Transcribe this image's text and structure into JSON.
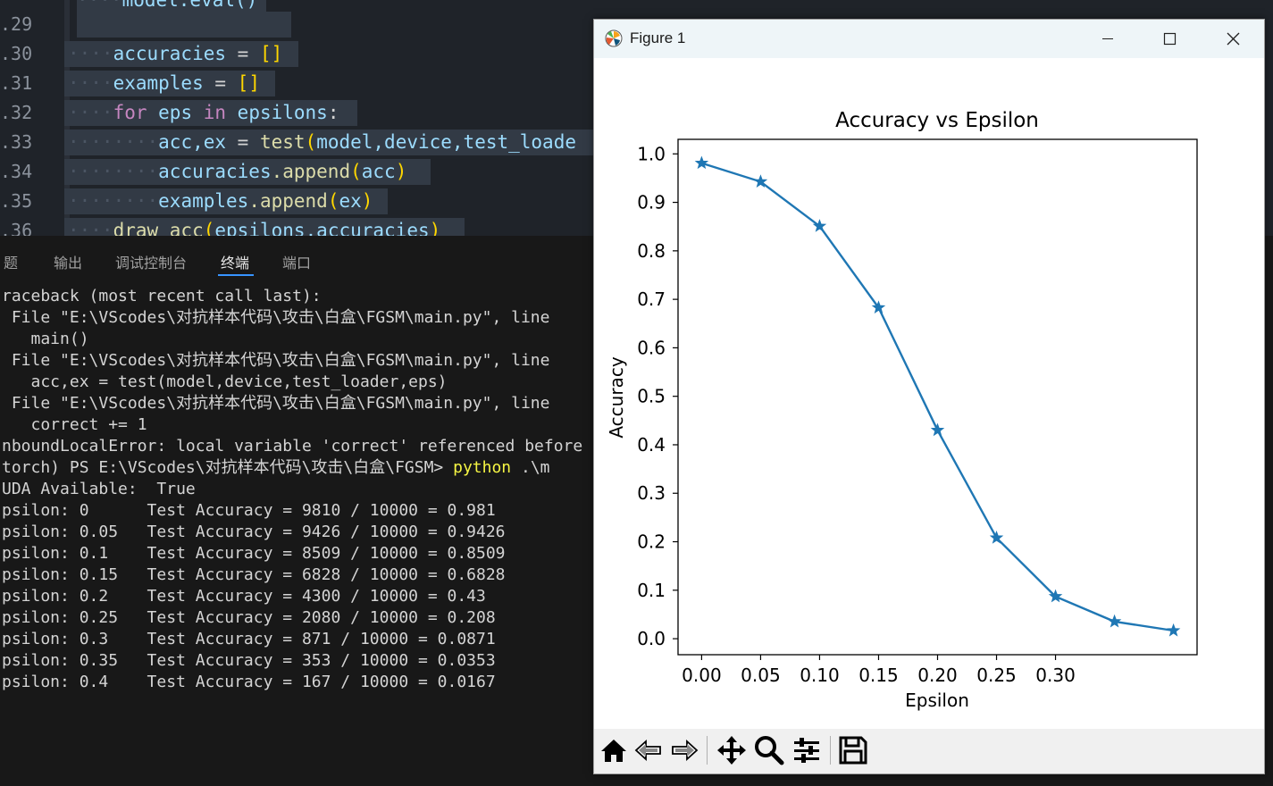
{
  "editor": {
    "lines": [
      {
        "num": ".29"
      },
      {
        "num": ".30"
      },
      {
        "num": ".31"
      },
      {
        "num": ".32"
      },
      {
        "num": ".33"
      },
      {
        "num": ".34"
      },
      {
        "num": ".35"
      },
      {
        "num": ".36"
      }
    ],
    "code": {
      "l28": "model.eval()",
      "l30_var": "accuracies",
      "l30_op": " = ",
      "l30_br": "[]",
      "l31_var": "examples",
      "l31_op": " = ",
      "l31_br": "[]",
      "l32_kw": "for",
      "l32_var1": " eps ",
      "l32_kw2": "in",
      "l32_var2": " epsilons",
      "l32_op": ":",
      "l33_var": "acc,ex",
      "l33_op": " = ",
      "l33_fn": "test",
      "l33_br": "(",
      "l33_args": "model,device,test_loade",
      "l34_var": "accuracies",
      "l34_fn": ".append",
      "l34_br1": "(",
      "l34_arg": "acc",
      "l34_br2": ")",
      "l35_var": "examples",
      "l35_fn": ".append",
      "l35_br1": "(",
      "l35_arg": "ex",
      "l35_br2": ")",
      "l36_fn": "draw_acc",
      "l36_br1": "(",
      "l36_args": "epsilons,accuracies",
      "l36_br2": ")"
    }
  },
  "panel": {
    "tabs": [
      "题",
      "输出",
      "调试控制台",
      "终端",
      "端口"
    ],
    "active_tab": "终端"
  },
  "terminal": {
    "lines": [
      "raceback (most recent call last):",
      " File \"E:\\VScodes\\对抗样本代码\\攻击\\白盒\\FGSM\\main.py\", line",
      "   main()",
      " File \"E:\\VScodes\\对抗样本代码\\攻击\\白盒\\FGSM\\main.py\", line",
      "   acc,ex = test(model,device,test_loader,eps)",
      " File \"E:\\VScodes\\对抗样本代码\\攻击\\白盒\\FGSM\\main.py\", line",
      "   correct += 1",
      "nboundLocalError: local variable 'correct' referenced before"
    ],
    "prompt": "torch) PS E:\\VScodes\\对抗样本代码\\攻击\\白盒\\FGSM> ",
    "command": "python",
    "command_rest": " .\\m",
    "output": [
      "UDA Available:  True",
      "psilon: 0      Test Accuracy = 9810 / 10000 = 0.981",
      "psilon: 0.05   Test Accuracy = 9426 / 10000 = 0.9426",
      "psilon: 0.1    Test Accuracy = 8509 / 10000 = 0.8509",
      "psilon: 0.15   Test Accuracy = 6828 / 10000 = 0.6828",
      "psilon: 0.2    Test Accuracy = 4300 / 10000 = 0.43",
      "psilon: 0.25   Test Accuracy = 2080 / 10000 = 0.208",
      "psilon: 0.3    Test Accuracy = 871 / 10000 = 0.0871",
      "psilon: 0.35   Test Accuracy = 353 / 10000 = 0.0353",
      "psilon: 0.4    Test Accuracy = 167 / 10000 = 0.0167"
    ]
  },
  "figure": {
    "window_title": "Figure 1",
    "toolbar_icons": [
      "home-icon",
      "back-icon",
      "forward-icon",
      "pan-icon",
      "zoom-icon",
      "configure-icon",
      "save-icon"
    ]
  },
  "chart_data": {
    "type": "line",
    "title": "Accuracy vs Epsilon",
    "xlabel": "Epsilon",
    "ylabel": "Accuracy",
    "x": [
      0,
      0.05,
      0.1,
      0.15,
      0.2,
      0.25,
      0.3,
      0.35,
      0.4
    ],
    "y": [
      0.981,
      0.9426,
      0.8509,
      0.6828,
      0.43,
      0.208,
      0.0871,
      0.0353,
      0.0167
    ],
    "xticks": [
      0,
      0.05,
      0.1,
      0.15,
      0.2,
      0.25,
      0.3
    ],
    "xtick_labels": [
      "0.00",
      "0.05",
      "0.10",
      "0.15",
      "0.20",
      "0.25",
      "0.30"
    ],
    "yticks": [
      0,
      0.1,
      0.2,
      0.3,
      0.4,
      0.5,
      0.6,
      0.7,
      0.8,
      0.9,
      1.0
    ],
    "ytick_labels": [
      "0.0",
      "0.1",
      "0.2",
      "0.3",
      "0.4",
      "0.5",
      "0.6",
      "0.7",
      "0.8",
      "0.9",
      "1.0"
    ],
    "xlim": [
      -0.02,
      0.42
    ],
    "ylim": [
      -0.033,
      1.03
    ],
    "marker": "star",
    "color": "#1f77b4",
    "grid": false
  }
}
